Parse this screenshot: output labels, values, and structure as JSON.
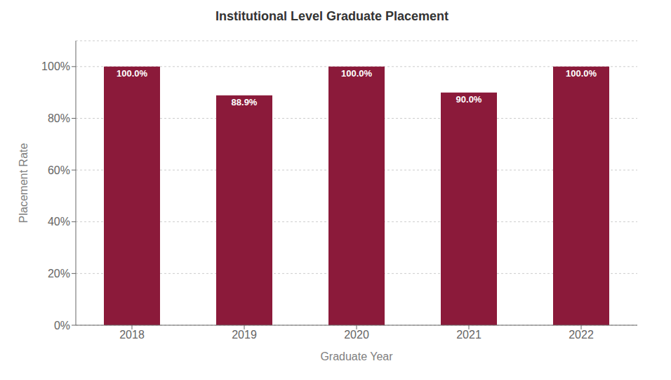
{
  "chart_data": {
    "type": "bar",
    "title": "Institutional Level Graduate Placement",
    "xlabel": "Graduate Year",
    "ylabel": "Placement Rate",
    "categories": [
      "2018",
      "2019",
      "2020",
      "2021",
      "2022"
    ],
    "values": [
      100.0,
      88.9,
      100.0,
      90.0,
      100.0
    ],
    "value_labels": [
      "100.0%",
      "88.9%",
      "100.0%",
      "90.0%",
      "100.0%"
    ],
    "data_labels": true,
    "color": "#8B1A3A",
    "ylim": [
      0,
      110
    ],
    "yticks": [
      {
        "value": 0,
        "label": "0%"
      },
      {
        "value": 20,
        "label": "20%"
      },
      {
        "value": 40,
        "label": "40%"
      },
      {
        "value": 60,
        "label": "60%"
      },
      {
        "value": 80,
        "label": "80%"
      },
      {
        "value": 100,
        "label": "100%"
      }
    ],
    "grid": true
  }
}
